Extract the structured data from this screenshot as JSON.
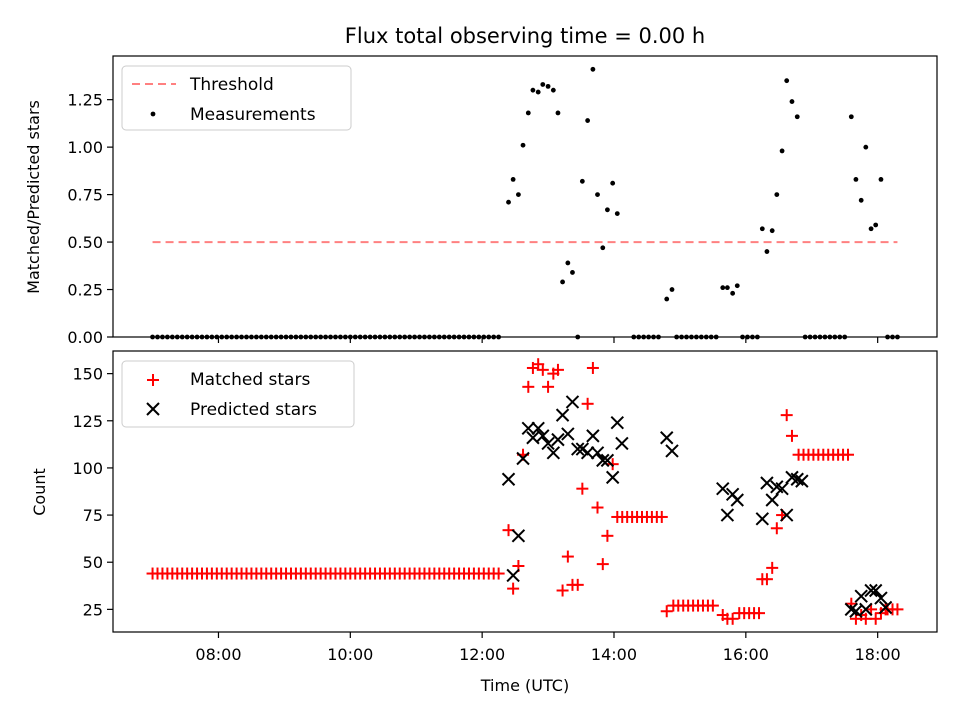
{
  "chart_data": [
    {
      "type": "scatter",
      "title": "Flux total observing time = 0.00 h",
      "xlabel": "",
      "ylabel": "Matched/Predicted stars",
      "x_unit": "hours UTC",
      "xlim": [
        6.4,
        18.9
      ],
      "ylim": [
        0,
        1.48
      ],
      "yticks": [
        0.0,
        0.25,
        0.5,
        0.75,
        1.0,
        1.25
      ],
      "ytick_labels": [
        "0.00",
        "0.25",
        "0.50",
        "0.75",
        "1.00",
        "1.25"
      ],
      "legend_position": "top-left",
      "threshold": {
        "name": "Threshold",
        "value": 0.5,
        "x_range": [
          7.0,
          18.3
        ],
        "color": "#ff8080"
      },
      "series": [
        {
          "name": "Measurements",
          "color": "#000000",
          "points": [
            [
              12.4,
              0.71
            ],
            [
              12.47,
              0.83
            ],
            [
              12.55,
              0.75
            ],
            [
              12.62,
              1.01
            ],
            [
              12.7,
              1.18
            ],
            [
              12.77,
              1.3
            ],
            [
              12.85,
              1.29
            ],
            [
              12.92,
              1.33
            ],
            [
              13.0,
              1.32
            ],
            [
              13.08,
              1.3
            ],
            [
              13.15,
              1.18
            ],
            [
              13.22,
              0.29
            ],
            [
              13.3,
              0.39
            ],
            [
              13.37,
              0.34
            ],
            [
              13.45,
              0.0
            ],
            [
              13.52,
              0.82
            ],
            [
              13.6,
              1.14
            ],
            [
              13.68,
              1.41
            ],
            [
              13.75,
              0.75
            ],
            [
              13.83,
              0.47
            ],
            [
              13.9,
              0.67
            ],
            [
              13.98,
              0.81
            ],
            [
              14.05,
              0.65
            ],
            [
              14.8,
              0.2
            ],
            [
              14.88,
              0.25
            ],
            [
              15.65,
              0.26
            ],
            [
              15.72,
              0.26
            ],
            [
              15.8,
              0.23
            ],
            [
              15.87,
              0.27
            ],
            [
              16.25,
              0.57
            ],
            [
              16.32,
              0.45
            ],
            [
              16.4,
              0.56
            ],
            [
              16.47,
              0.75
            ],
            [
              16.55,
              0.98
            ],
            [
              16.62,
              1.35
            ],
            [
              16.7,
              1.24
            ],
            [
              16.78,
              1.16
            ],
            [
              17.6,
              1.16
            ],
            [
              17.67,
              0.83
            ],
            [
              17.75,
              0.72
            ],
            [
              17.82,
              1.0
            ],
            [
              17.9,
              0.57
            ],
            [
              17.97,
              0.59
            ],
            [
              18.05,
              0.83
            ]
          ],
          "zero_segments": [
            [
              7.0,
              12.3
            ],
            [
              14.3,
              14.7
            ],
            [
              14.95,
              15.55
            ],
            [
              15.95,
              16.2
            ],
            [
              16.9,
              17.5
            ],
            [
              18.15,
              18.3
            ]
          ],
          "zero_step": 0.075
        }
      ]
    },
    {
      "type": "scatter",
      "title": "",
      "xlabel": "Time (UTC)",
      "ylabel": "Count",
      "x_unit": "hours UTC",
      "xlim": [
        6.4,
        18.9
      ],
      "ylim": [
        13,
        162
      ],
      "yticks": [
        25,
        50,
        75,
        100,
        125,
        150
      ],
      "ytick_labels": [
        "25",
        "50",
        "75",
        "100",
        "125",
        "150"
      ],
      "xticks": [
        8,
        10,
        12,
        14,
        16,
        18
      ],
      "xtick_labels": [
        "08:00",
        "10:00",
        "12:00",
        "14:00",
        "16:00",
        "18:00"
      ],
      "legend_position": "top-left",
      "series": [
        {
          "name": "Matched stars",
          "marker": "plus",
          "color": "#ff0000",
          "points": [
            [
              12.4,
              67
            ],
            [
              12.47,
              36
            ],
            [
              12.55,
              48
            ],
            [
              12.62,
              107
            ],
            [
              12.7,
              143
            ],
            [
              12.77,
              153
            ],
            [
              12.85,
              155
            ],
            [
              12.92,
              152
            ],
            [
              13.0,
              143
            ],
            [
              13.08,
              150
            ],
            [
              13.15,
              152
            ],
            [
              13.22,
              35
            ],
            [
              13.3,
              53
            ],
            [
              13.37,
              38
            ],
            [
              13.45,
              38
            ],
            [
              13.52,
              89
            ],
            [
              13.6,
              134
            ],
            [
              13.68,
              153
            ],
            [
              13.75,
              79
            ],
            [
              13.83,
              49
            ],
            [
              13.9,
              64
            ],
            [
              13.98,
              102
            ],
            [
              15.65,
              22
            ],
            [
              15.72,
              20
            ],
            [
              15.8,
              20
            ],
            [
              16.25,
              41
            ],
            [
              16.32,
              41
            ],
            [
              16.4,
              47
            ],
            [
              16.47,
              68
            ],
            [
              16.55,
              75
            ],
            [
              16.62,
              128
            ],
            [
              16.7,
              117
            ],
            [
              17.6,
              28
            ],
            [
              17.67,
              20
            ],
            [
              17.75,
              22
            ],
            [
              17.82,
              20
            ],
            [
              17.9,
              25
            ],
            [
              17.97,
              20
            ],
            [
              18.05,
              23
            ],
            [
              18.12,
              25
            ]
          ],
          "flat_segments": [
            {
              "x": [
                7.0,
                12.3
              ],
              "y": 44,
              "step": 0.075
            },
            {
              "x": [
                14.05,
                14.75
              ],
              "y": 74,
              "step": 0.075
            },
            {
              "x": [
                14.8,
                14.85
              ],
              "y": 24,
              "step": 0.075
            },
            {
              "x": [
                14.9,
                15.55
              ],
              "y": 27,
              "step": 0.075
            },
            {
              "x": [
                15.9,
                16.2
              ],
              "y": 23,
              "step": 0.075
            },
            {
              "x": [
                16.8,
                17.55
              ],
              "y": 107,
              "step": 0.075
            },
            {
              "x": [
                18.15,
                18.3
              ],
              "y": 25,
              "step": 0.075
            }
          ]
        },
        {
          "name": "Predicted stars",
          "marker": "x",
          "color": "#000000",
          "points": [
            [
              12.4,
              94
            ],
            [
              12.47,
              43
            ],
            [
              12.55,
              64
            ],
            [
              12.62,
              105
            ],
            [
              12.7,
              121
            ],
            [
              12.77,
              116
            ],
            [
              12.85,
              121
            ],
            [
              12.92,
              117
            ],
            [
              13.0,
              113
            ],
            [
              13.08,
              108
            ],
            [
              13.15,
              115
            ],
            [
              13.22,
              128
            ],
            [
              13.3,
              118
            ],
            [
              13.37,
              135
            ],
            [
              13.45,
              110
            ],
            [
              13.52,
              110
            ],
            [
              13.6,
              108
            ],
            [
              13.68,
              117
            ],
            [
              13.75,
              108
            ],
            [
              13.83,
              104
            ],
            [
              13.9,
              104
            ],
            [
              13.98,
              95
            ],
            [
              14.05,
              124
            ],
            [
              14.12,
              113
            ],
            [
              14.8,
              116
            ],
            [
              14.88,
              109
            ],
            [
              15.65,
              89
            ],
            [
              15.72,
              75
            ],
            [
              15.8,
              86
            ],
            [
              15.87,
              83
            ],
            [
              16.25,
              73
            ],
            [
              16.32,
              92
            ],
            [
              16.4,
              83
            ],
            [
              16.47,
              90
            ],
            [
              16.55,
              89
            ],
            [
              16.62,
              75
            ],
            [
              16.7,
              95
            ],
            [
              16.78,
              94
            ],
            [
              16.85,
              93
            ],
            [
              17.6,
              25
            ],
            [
              17.67,
              24
            ],
            [
              17.75,
              32
            ],
            [
              17.82,
              25
            ],
            [
              17.9,
              35
            ],
            [
              17.97,
              35
            ],
            [
              18.05,
              31
            ],
            [
              18.12,
              26
            ]
          ]
        }
      ]
    }
  ]
}
